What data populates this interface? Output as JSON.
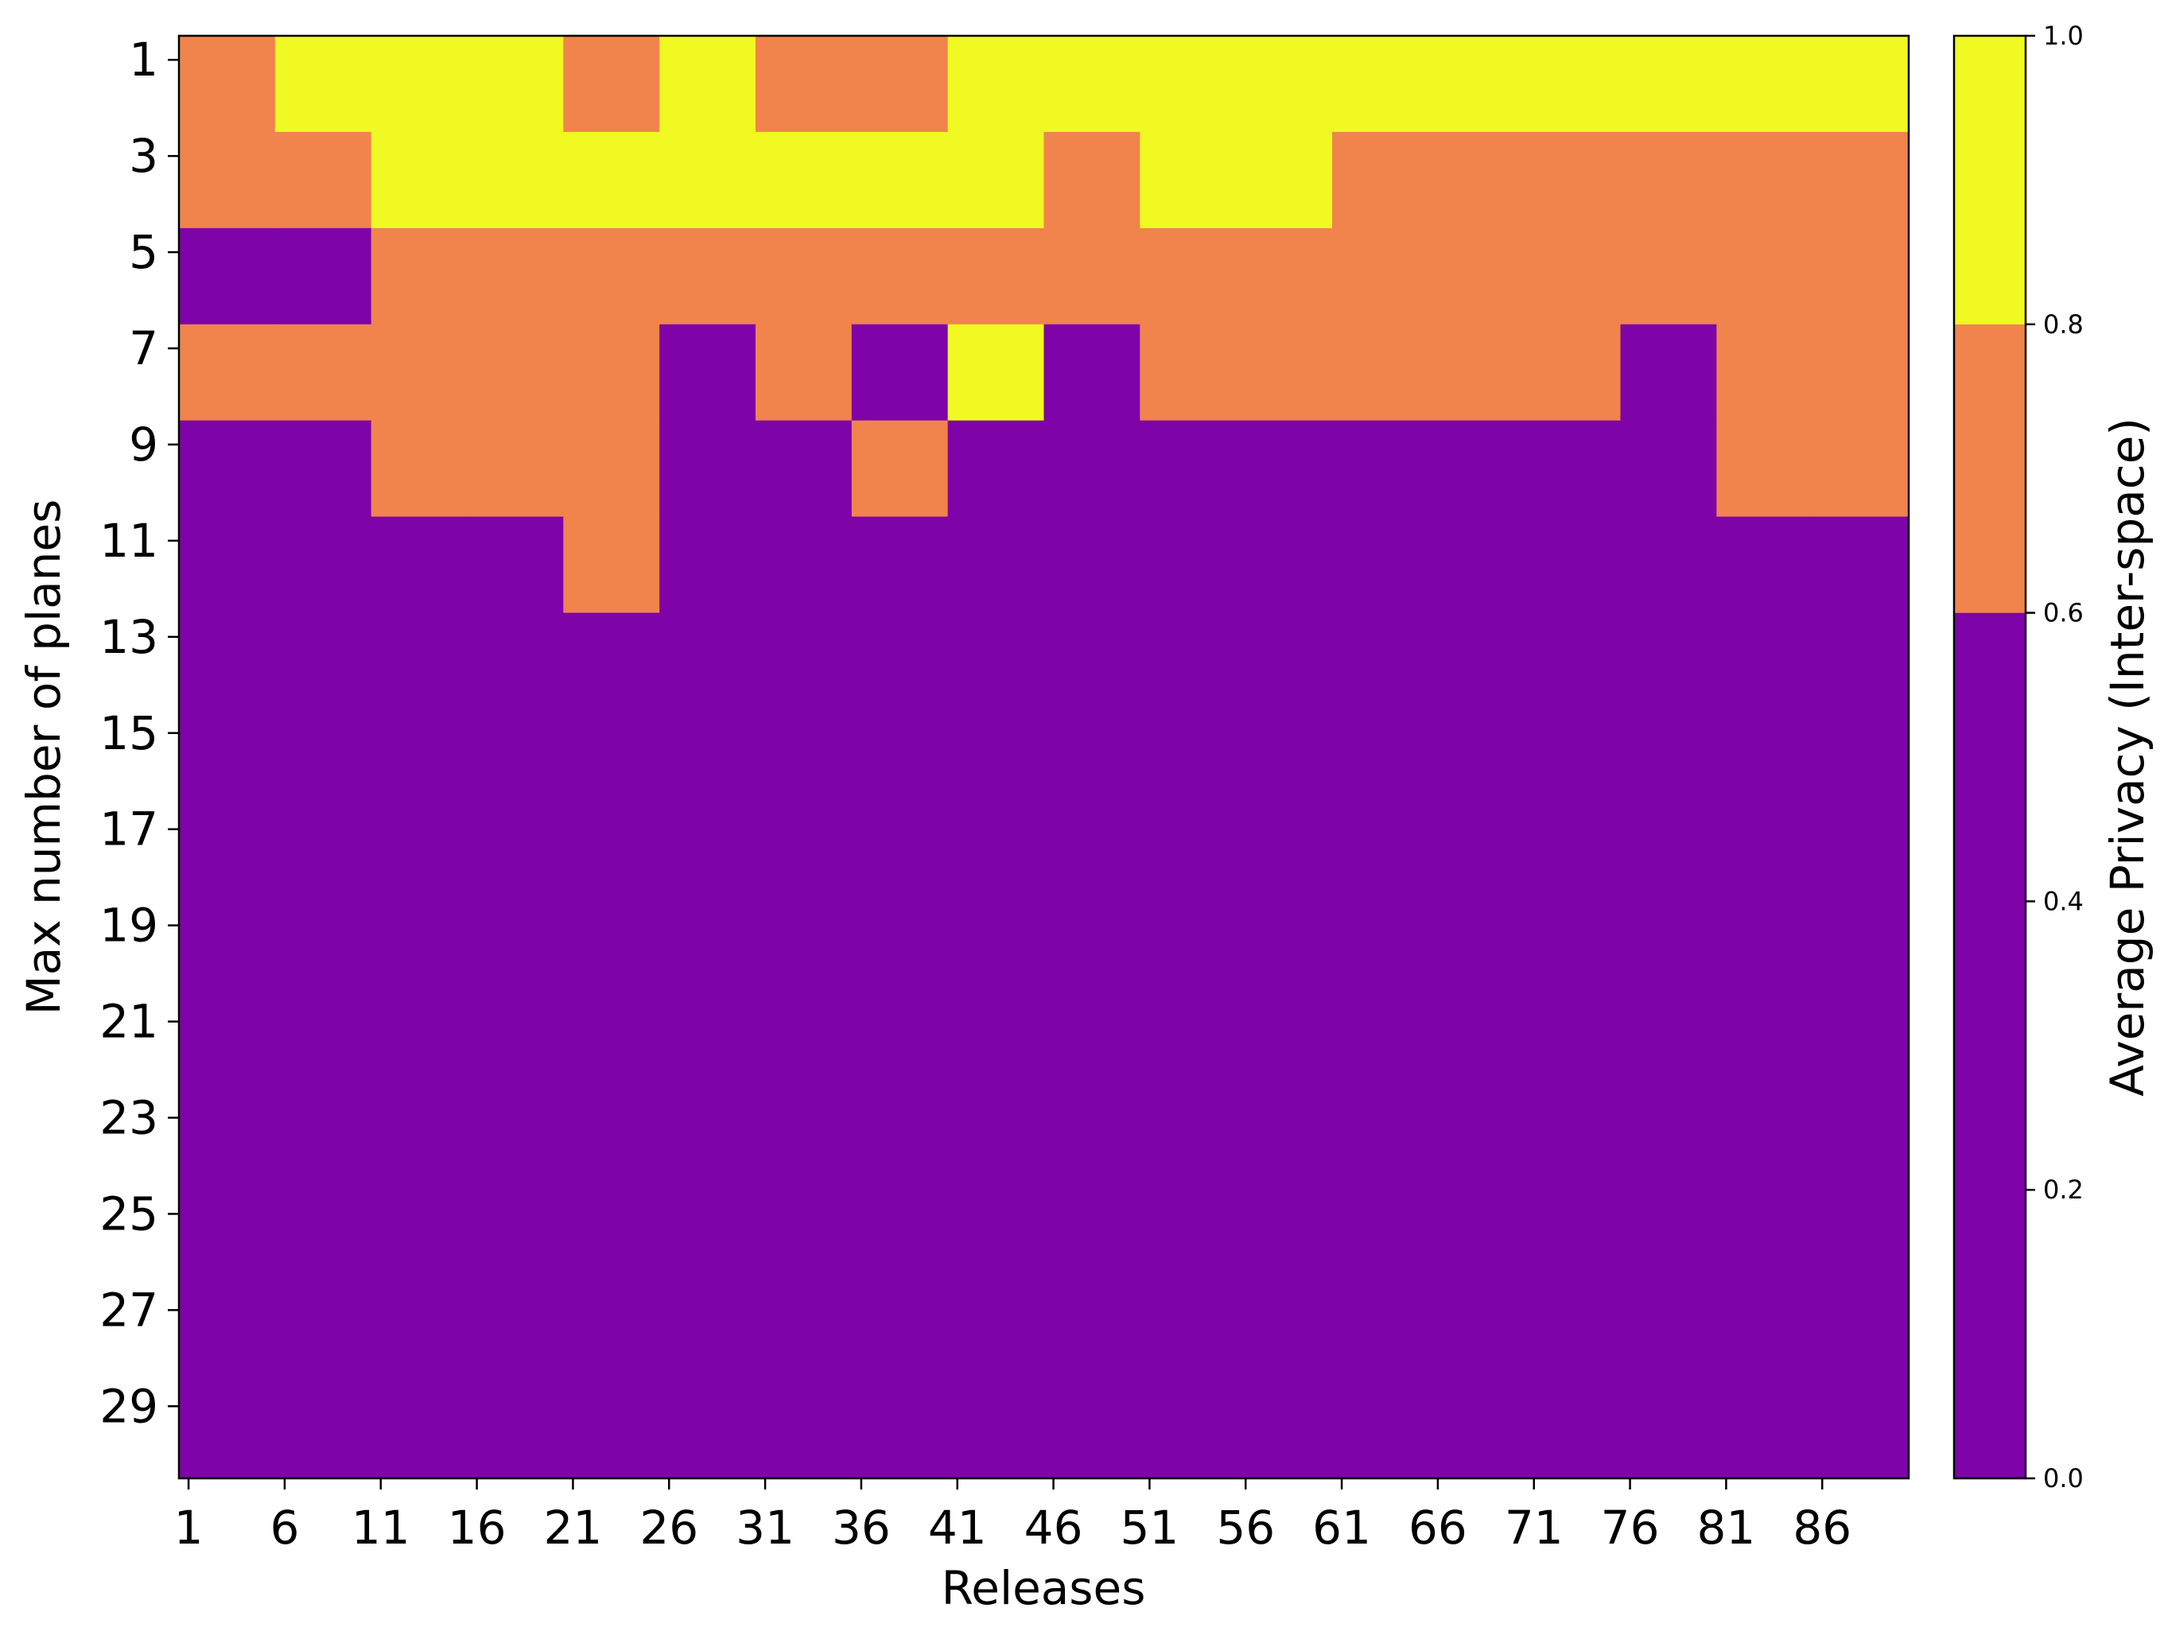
{
  "chart_data": {
    "type": "heatmap",
    "xlabel": "Releases",
    "ylabel": "Max number of planes",
    "x_tick_labels": [
      "1",
      "6",
      "11",
      "16",
      "21",
      "26",
      "31",
      "36",
      "41",
      "46",
      "51",
      "56",
      "61",
      "66",
      "71",
      "76",
      "81",
      "86"
    ],
    "y_tick_labels": [
      "1",
      "3",
      "5",
      "7",
      "9",
      "11",
      "13",
      "15",
      "17",
      "19",
      "21",
      "23",
      "25",
      "27",
      "29"
    ],
    "colorbar": {
      "label": "Average Privacy (Inter-space)",
      "range": [
        0.0,
        1.0
      ],
      "tick_labels": [
        "0.0",
        "0.2",
        "0.4",
        "0.6",
        "0.8",
        "1.0"
      ],
      "bins": [
        {
          "range": [
            0.0,
            0.6
          ],
          "color": "#7e03a8"
        },
        {
          "range": [
            0.6,
            0.8
          ],
          "color": "#f0844c"
        },
        {
          "range": [
            0.8,
            1.0
          ],
          "color": "#f0f921"
        }
      ]
    },
    "cells_note": "rows = max number of planes (1,3,...,29); columns = 18 release groups (1,6,...,86); values are binned levels 0=low(<0.6),1=mid(0.6-0.8),2=high(>=0.8)",
    "values": [
      [
        1,
        2,
        2,
        2,
        1,
        2,
        1,
        1,
        2,
        2,
        2,
        2,
        2,
        2,
        2,
        2,
        2,
        2
      ],
      [
        1,
        1,
        2,
        2,
        2,
        2,
        2,
        2,
        2,
        1,
        2,
        2,
        1,
        1,
        1,
        1,
        1,
        1
      ],
      [
        0,
        0,
        1,
        1,
        1,
        1,
        1,
        1,
        1,
        1,
        1,
        1,
        1,
        1,
        1,
        1,
        1,
        1
      ],
      [
        1,
        1,
        1,
        1,
        1,
        0,
        1,
        0,
        2,
        0,
        1,
        1,
        1,
        1,
        1,
        0,
        1,
        1
      ],
      [
        0,
        0,
        1,
        1,
        1,
        0,
        0,
        1,
        0,
        0,
        0,
        0,
        0,
        0,
        0,
        0,
        1,
        1
      ],
      [
        0,
        0,
        0,
        0,
        1,
        0,
        0,
        0,
        0,
        0,
        0,
        0,
        0,
        0,
        0,
        0,
        0,
        0
      ],
      [
        0,
        0,
        0,
        0,
        0,
        0,
        0,
        0,
        0,
        0,
        0,
        0,
        0,
        0,
        0,
        0,
        0,
        0
      ],
      [
        0,
        0,
        0,
        0,
        0,
        0,
        0,
        0,
        0,
        0,
        0,
        0,
        0,
        0,
        0,
        0,
        0,
        0
      ],
      [
        0,
        0,
        0,
        0,
        0,
        0,
        0,
        0,
        0,
        0,
        0,
        0,
        0,
        0,
        0,
        0,
        0,
        0
      ],
      [
        0,
        0,
        0,
        0,
        0,
        0,
        0,
        0,
        0,
        0,
        0,
        0,
        0,
        0,
        0,
        0,
        0,
        0
      ],
      [
        0,
        0,
        0,
        0,
        0,
        0,
        0,
        0,
        0,
        0,
        0,
        0,
        0,
        0,
        0,
        0,
        0,
        0
      ],
      [
        0,
        0,
        0,
        0,
        0,
        0,
        0,
        0,
        0,
        0,
        0,
        0,
        0,
        0,
        0,
        0,
        0,
        0
      ],
      [
        0,
        0,
        0,
        0,
        0,
        0,
        0,
        0,
        0,
        0,
        0,
        0,
        0,
        0,
        0,
        0,
        0,
        0
      ],
      [
        0,
        0,
        0,
        0,
        0,
        0,
        0,
        0,
        0,
        0,
        0,
        0,
        0,
        0,
        0,
        0,
        0,
        0
      ],
      [
        0,
        0,
        0,
        0,
        0,
        0,
        0,
        0,
        0,
        0,
        0,
        0,
        0,
        0,
        0,
        0,
        0,
        0
      ]
    ]
  }
}
